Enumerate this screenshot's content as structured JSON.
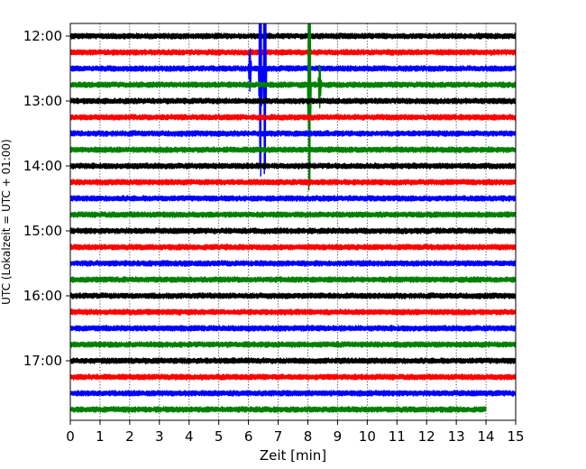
{
  "chart_data": {
    "type": "line",
    "title": "",
    "xlabel": "Zeit  [min]",
    "ylabel": "UTC (Lokalzeit = UTC + 01:00)",
    "xlim": [
      0,
      15
    ],
    "x_ticks": [
      "0",
      "1",
      "2",
      "3",
      "4",
      "5",
      "6",
      "7",
      "8",
      "9",
      "10",
      "11",
      "12",
      "13",
      "14",
      "15"
    ],
    "y_ticks": [
      "12:00",
      "13:00",
      "14:00",
      "15:00",
      "16:00",
      "17:00"
    ],
    "x_grid": true,
    "y_grid": false,
    "rows_per_hour": 4,
    "row_minutes": 15,
    "color_cycle": [
      "#000000",
      "#ff0000",
      "#0000ff",
      "#008000"
    ],
    "rows": [
      {
        "start": "12:00"
      },
      {
        "start": "12:15"
      },
      {
        "start": "12:30"
      },
      {
        "start": "12:45"
      },
      {
        "start": "13:00"
      },
      {
        "start": "13:15"
      },
      {
        "start": "13:30"
      },
      {
        "start": "13:45"
      },
      {
        "start": "14:00"
      },
      {
        "start": "14:15"
      },
      {
        "start": "14:30"
      },
      {
        "start": "14:45"
      },
      {
        "start": "15:00"
      },
      {
        "start": "15:15"
      },
      {
        "start": "15:30"
      },
      {
        "start": "15:45"
      },
      {
        "start": "16:00"
      },
      {
        "start": "16:15"
      },
      {
        "start": "16:30"
      },
      {
        "start": "16:45"
      },
      {
        "start": "17:00"
      },
      {
        "start": "17:15"
      },
      {
        "start": "17:30"
      },
      {
        "start": "17:45",
        "end_minute": 14
      }
    ],
    "events": [
      {
        "row": "12:30",
        "minute": 6.05,
        "amplitude_rows": 1.5
      },
      {
        "row": "12:30",
        "minute": 6.4,
        "amplitude_rows": 8.5
      },
      {
        "row": "12:30",
        "minute": 6.55,
        "amplitude_rows": 8.5
      },
      {
        "row": "12:45",
        "minute": 8.05,
        "amplitude_rows": 8.5
      },
      {
        "row": "12:45",
        "minute": 8.4,
        "amplitude_rows": 1.5
      }
    ]
  }
}
